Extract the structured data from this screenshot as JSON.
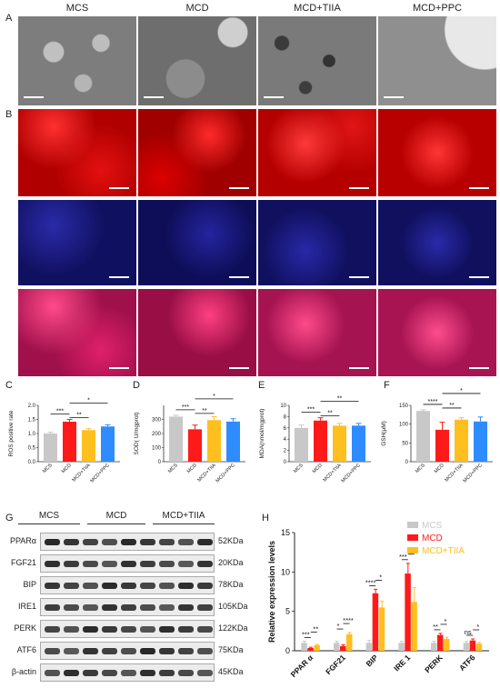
{
  "panels": {
    "A": "A",
    "B": "B",
    "C": "C",
    "D": "D",
    "E": "E",
    "F": "F",
    "G": "G",
    "H": "H"
  },
  "groups": [
    "MCS",
    "MCD",
    "MCD+TIIA",
    "MCD+PPC"
  ],
  "group_colors": [
    "#c8c8c8",
    "#ff1a1a",
    "#ffbf1f",
    "#2f8cff"
  ],
  "western_blot": {
    "groups": [
      "MCS",
      "MCD",
      "MCD+TIIA"
    ],
    "proteins": [
      "PPARα",
      "FGF21",
      "BIP",
      "IRE1",
      "PERK",
      "ATF6",
      "β-actin"
    ],
    "weights": [
      "52KDa",
      "20KDa",
      "78KDa",
      "105KDa",
      "122KDa",
      "75KDa",
      "45KDa"
    ]
  },
  "chart_data": [
    {
      "id": "C",
      "type": "bar",
      "ylabel": "ROS positive rate",
      "categories": [
        "MCS",
        "MCD",
        "MCD+TIIA",
        "MCD+PPC"
      ],
      "values": [
        1.0,
        1.42,
        1.12,
        1.25
      ],
      "errors": [
        0.05,
        0.08,
        0.05,
        0.06
      ],
      "ylim": [
        0,
        2.0
      ],
      "yticks": [
        "0.0",
        "0.5",
        "1.0",
        "1.5",
        "2.0"
      ],
      "significance": [
        {
          "from": 0,
          "to": 1,
          "label": "***"
        },
        {
          "from": 1,
          "to": 2,
          "label": "**"
        },
        {
          "from": 1,
          "to": 3,
          "label": "*"
        }
      ]
    },
    {
      "id": "D",
      "type": "bar",
      "ylabel": "SOD( U/mgprot)",
      "categories": [
        "MCS",
        "MCD",
        "MCD+TIIA",
        "MCD+PPC"
      ],
      "values": [
        320,
        230,
        295,
        285
      ],
      "errors": [
        10,
        30,
        25,
        20
      ],
      "ylim": [
        0,
        400
      ],
      "yticks": [
        "0",
        "100",
        "200",
        "300"
      ],
      "significance": [
        {
          "from": 0,
          "to": 1,
          "label": "***"
        },
        {
          "from": 1,
          "to": 2,
          "label": "**"
        },
        {
          "from": 1,
          "to": 3,
          "label": "*"
        }
      ]
    },
    {
      "id": "E",
      "type": "bar",
      "ylabel": "MDA(nmol/mgprot)",
      "categories": [
        "MCS",
        "MCD",
        "MCD+TIIA",
        "MCD+PPC"
      ],
      "values": [
        6.0,
        7.3,
        6.4,
        6.4
      ],
      "errors": [
        0.5,
        0.5,
        0.4,
        0.4
      ],
      "ylim": [
        0,
        10
      ],
      "yticks": [
        "0",
        "2",
        "4",
        "6",
        "8",
        "10"
      ],
      "significance": [
        {
          "from": 0,
          "to": 1,
          "label": "***"
        },
        {
          "from": 1,
          "to": 2,
          "label": "**"
        },
        {
          "from": 1,
          "to": 3,
          "label": "**"
        }
      ]
    },
    {
      "id": "F",
      "type": "bar",
      "ylabel": "GSH(μM)",
      "categories": [
        "MCS",
        "MCD",
        "MCD+TIIA",
        "MCD+PPC"
      ],
      "values": [
        135,
        85,
        112,
        107
      ],
      "errors": [
        3,
        20,
        5,
        12
      ],
      "ylim": [
        0,
        150
      ],
      "yticks": [
        "0",
        "50",
        "100",
        "150"
      ],
      "significance": [
        {
          "from": 0,
          "to": 1,
          "label": "****"
        },
        {
          "from": 1,
          "to": 2,
          "label": "**"
        },
        {
          "from": 1,
          "to": 3,
          "label": "*"
        }
      ]
    },
    {
      "id": "H",
      "type": "bar",
      "ylabel": "Relative expression levels",
      "categories": [
        "PPAR α",
        "FGF21",
        "BIP",
        "IRE 1",
        "PERK",
        "ATF6"
      ],
      "series": [
        {
          "name": "MCS",
          "values": [
            1.0,
            1.0,
            1.0,
            1.0,
            1.0,
            1.0
          ],
          "errors": [
            0.2,
            0.2,
            0.3,
            0.2,
            0.2,
            0.2
          ]
        },
        {
          "name": "MCD",
          "values": [
            0.35,
            0.6,
            7.3,
            9.8,
            2.0,
            1.3
          ],
          "errors": [
            0.1,
            0.15,
            0.5,
            1.3,
            0.2,
            0.2
          ]
        },
        {
          "name": "MCD+TIIA",
          "values": [
            0.7,
            2.1,
            5.5,
            6.2,
            1.5,
            0.9
          ],
          "errors": [
            0.1,
            0.2,
            0.8,
            1.8,
            0.2,
            0.15
          ]
        }
      ],
      "ylim": [
        0,
        15
      ],
      "yticks": [
        "0",
        "5",
        "10",
        "15"
      ],
      "legend": "top-right",
      "significance": [
        {
          "cat": 0,
          "labels": [
            "***",
            "**"
          ]
        },
        {
          "cat": 1,
          "labels": [
            "*",
            "****"
          ]
        },
        {
          "cat": 2,
          "labels": [
            "****",
            "*"
          ]
        },
        {
          "cat": 3,
          "labels": [
            "***",
            "*"
          ]
        },
        {
          "cat": 4,
          "labels": [
            "**",
            "*"
          ]
        },
        {
          "cat": 5,
          "labels": [
            "ns",
            "*"
          ]
        }
      ]
    }
  ]
}
